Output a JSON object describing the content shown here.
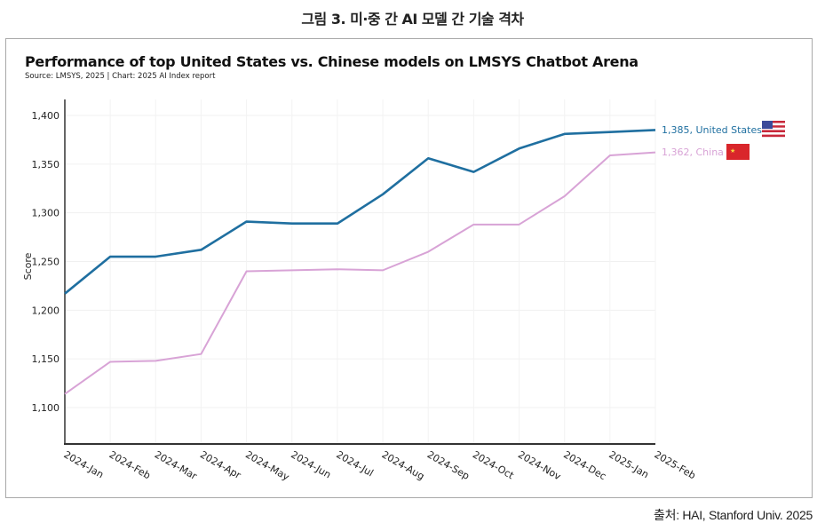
{
  "figure": {
    "title": "그림 3. 미·중 간 AI 모델 간 기술 격차",
    "source": "출처: HAI, Stanford Univ. 2025"
  },
  "chart_data": {
    "type": "line",
    "title": "Performance of top United States vs. Chinese models on LMSYS Chatbot Arena",
    "subtitle": "Source: LMSYS, 2025 | Chart: 2025 AI Index report",
    "xlabel": "",
    "ylabel": "Score",
    "ylim": [
      1070,
      1420
    ],
    "yticks": [
      1100,
      1150,
      1200,
      1250,
      1300,
      1350,
      1400
    ],
    "ytick_labels": [
      "1,100",
      "1,150",
      "1,200",
      "1,250",
      "1,300",
      "1,350",
      "1,400"
    ],
    "grid": true,
    "legend": "end-of-line labels (right)",
    "x": [
      "2024-Jan",
      "2024-Feb",
      "2024-Mar",
      "2024-Apr",
      "2024-May",
      "2024-Jun",
      "2024-Jul",
      "2024-Aug",
      "2024-Sep",
      "2024-Oct",
      "2024-Nov",
      "2024-Dec",
      "2025-Jan",
      "2025-Feb"
    ],
    "series": [
      {
        "name": "United States",
        "color": "#1f6fa0",
        "end_label": "1,385, United States",
        "flag": "us-flag",
        "values": [
          1217,
          1255,
          1255,
          1262,
          1291,
          1289,
          1289,
          1319,
          1356,
          1342,
          1366,
          1381,
          1383,
          1385
        ]
      },
      {
        "name": "China",
        "color": "#d8a3d6",
        "end_label": "1,362, China",
        "flag": "china-flag",
        "values": [
          1114,
          1147,
          1148,
          1155,
          1240,
          1241,
          1242,
          1241,
          1260,
          1288,
          1288,
          1317,
          1359,
          1362
        ]
      }
    ]
  }
}
